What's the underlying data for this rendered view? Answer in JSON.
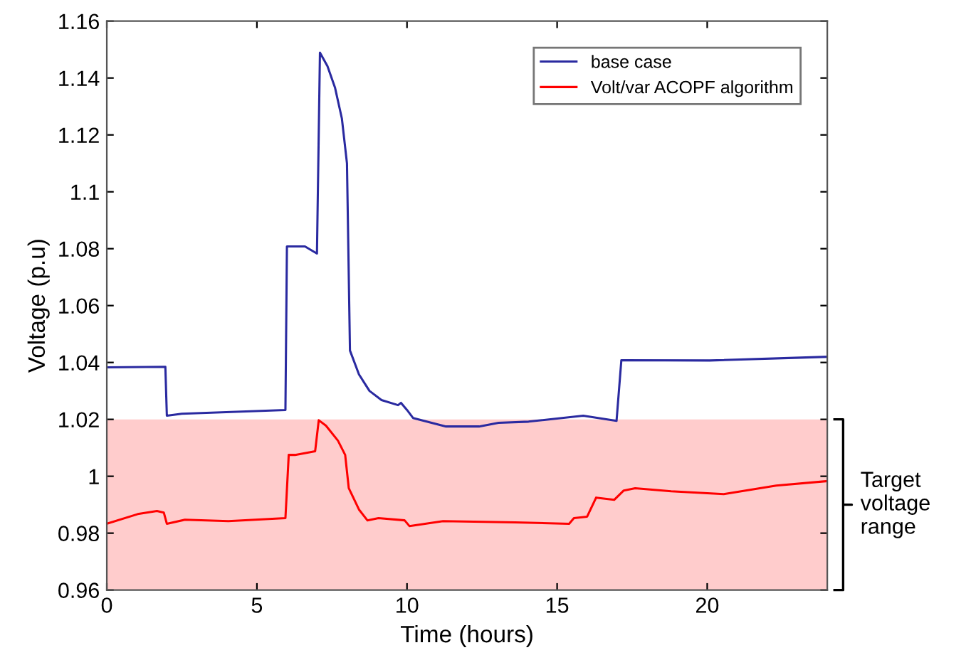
{
  "chart_data": {
    "type": "line",
    "xlabel": "Time (hours)",
    "ylabel": "Voltage (p.u)",
    "xlim": [
      0,
      24
    ],
    "ylim": [
      0.96,
      1.16
    ],
    "xticks": [
      0,
      5,
      10,
      15,
      20
    ],
    "yticks": [
      0.96,
      0.98,
      1,
      1.02,
      1.04,
      1.06,
      1.08,
      1.1,
      1.12,
      1.14,
      1.16
    ],
    "grid": false,
    "legend": "top right",
    "marker": "none",
    "line_style": "solid",
    "bands": [
      {
        "axis": "y",
        "from": 0.96,
        "to": 1.02,
        "label": "Target voltage range",
        "color": "#ffcccc"
      }
    ],
    "series": [
      {
        "name": "base case",
        "color": "#2a2aa0",
        "x": [
          0,
          1.95,
          2.0,
          2.5,
          5.95,
          6.0,
          6.6,
          7.0,
          7.1,
          7.35,
          7.6,
          7.83,
          8.0,
          8.1,
          8.4,
          8.75,
          9.15,
          9.7,
          9.8,
          10.0,
          10.2,
          11.3,
          12.4,
          13.05,
          14.05,
          15.87,
          16.98,
          17.14,
          20.08,
          23.1,
          24
        ],
        "values": [
          1.0383,
          1.0385,
          1.0213,
          1.022,
          1.0233,
          1.0808,
          1.0808,
          1.0783,
          1.1489,
          1.1442,
          1.1367,
          1.1258,
          1.11,
          1.0442,
          1.0358,
          1.03,
          1.0268,
          1.025,
          1.0258,
          1.0233,
          1.0205,
          1.0175,
          1.0175,
          1.0188,
          1.0192,
          1.0213,
          1.0195,
          1.0408,
          1.0407,
          1.0417,
          1.042
        ]
      },
      {
        "name": "Volt/var ACOPF algorithm",
        "color": "#ff0000",
        "x": [
          0,
          1.03,
          1.67,
          1.9,
          2.0,
          2.6,
          4.05,
          5.95,
          6.06,
          6.27,
          6.94,
          7.06,
          7.3,
          7.7,
          7.94,
          8.06,
          8.4,
          8.68,
          9.05,
          9.92,
          10.08,
          11.2,
          13.6,
          15.4,
          15.56,
          16.0,
          16.3,
          16.9,
          17.22,
          17.6,
          18.8,
          20.55,
          22.3,
          24
        ],
        "values": [
          0.9833,
          0.9867,
          0.9878,
          0.9872,
          0.9833,
          0.9847,
          0.9842,
          0.9853,
          1.0075,
          1.0075,
          1.0088,
          1.0197,
          1.0178,
          1.0125,
          1.0075,
          0.9958,
          0.9883,
          0.9845,
          0.9853,
          0.9845,
          0.9825,
          0.9842,
          0.9838,
          0.9833,
          0.9853,
          0.9858,
          0.9925,
          0.9917,
          0.995,
          0.9958,
          0.9947,
          0.9937,
          0.9967,
          0.9983
        ]
      }
    ]
  }
}
